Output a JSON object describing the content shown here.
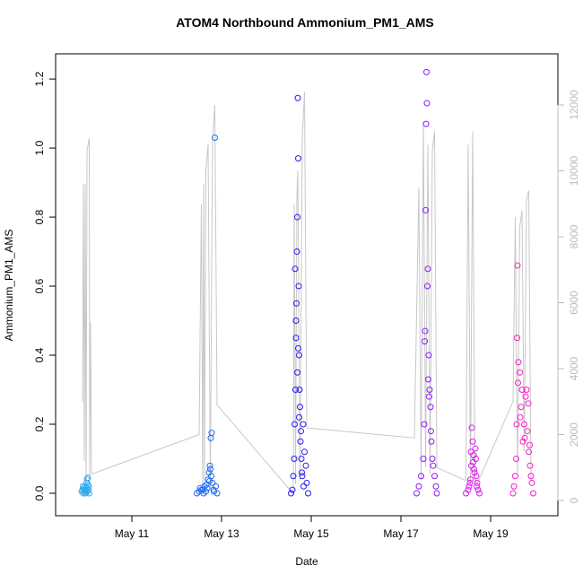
{
  "chart_data": {
    "type": "scatter",
    "title": "ATOM4 Northbound Ammonium_PM1_AMS",
    "x_label": "Date",
    "y_label": "Ammonium_PM1_AMS",
    "xlim": [
      9.3,
      20.5
    ],
    "xticks": [
      {
        "value": 11,
        "label": "May 11"
      },
      {
        "value": 13,
        "label": "May 13"
      },
      {
        "value": 15,
        "label": "May 15"
      },
      {
        "value": 17,
        "label": "May 17"
      },
      {
        "value": 19,
        "label": "May 19"
      }
    ],
    "ylim": [
      -0.065,
      1.273
    ],
    "yticks": [
      {
        "value": 0,
        "label": "0.0"
      },
      0.2,
      0.4,
      0.6,
      0.8,
      {
        "value": 1,
        "label": "1.0"
      },
      1.2
    ],
    "y2lim": [
      -463,
      13551
    ],
    "y2ticks": [
      0,
      2000,
      4000,
      6000,
      8000,
      10000,
      12000
    ],
    "y2_color": "#bbbbbb",
    "series": [
      {
        "color": "#2ea8f0",
        "x": [
          9.88,
          9.9,
          9.92,
          9.93,
          9.95,
          9.96,
          9.97,
          9.98,
          9.99,
          10.0,
          10.01,
          10.02,
          10.03,
          10.04,
          10.05,
          9.91,
          9.94,
          9.97,
          10.0,
          10.02
        ],
        "values": [
          0.005,
          0.01,
          0.0,
          0.015,
          0.005,
          0.02,
          0.0,
          0.01,
          0.03,
          0.04,
          0.005,
          0.045,
          0.01,
          0.02,
          0.0,
          0.02,
          0.01,
          0.005,
          0.015,
          0.025
        ]
      },
      {
        "color": "#1a6cf5",
        "x": [
          12.45,
          12.5,
          12.55,
          12.6,
          12.62,
          12.65,
          12.68,
          12.7,
          12.72,
          12.74,
          12.75,
          12.76,
          12.78,
          12.8,
          12.82,
          12.85,
          12.87,
          12.9,
          12.58,
          12.66,
          12.73,
          12.77,
          12.83,
          12.52
        ],
        "values": [
          0.0,
          0.005,
          0.01,
          0.0,
          0.02,
          0.005,
          0.015,
          0.04,
          0.06,
          0.08,
          0.07,
          0.16,
          0.175,
          0.03,
          0.01,
          1.03,
          0.02,
          0.0,
          0.01,
          0.025,
          0.035,
          0.05,
          0.005,
          0.015
        ]
      },
      {
        "color": "#2a1af0",
        "x": [
          14.55,
          14.58,
          14.6,
          14.62,
          14.63,
          14.65,
          14.66,
          14.67,
          14.68,
          14.69,
          14.7,
          14.71,
          14.72,
          14.73,
          14.74,
          14.75,
          14.76,
          14.78,
          14.8,
          14.82,
          14.85,
          14.88,
          14.9,
          14.93,
          14.64,
          14.66,
          14.69,
          14.71,
          14.73,
          14.77,
          14.79,
          14.83
        ],
        "values": [
          0.0,
          0.01,
          0.05,
          0.1,
          0.2,
          0.3,
          0.45,
          0.55,
          0.7,
          0.8,
          1.145,
          0.97,
          0.6,
          0.4,
          0.3,
          0.25,
          0.15,
          0.1,
          0.05,
          0.2,
          0.12,
          0.08,
          0.03,
          0.0,
          0.65,
          0.5,
          0.35,
          0.42,
          0.22,
          0.18,
          0.06,
          0.02
        ]
      },
      {
        "color": "#8a1aff",
        "x": [
          17.35,
          17.4,
          17.45,
          17.5,
          17.52,
          17.54,
          17.55,
          17.56,
          17.57,
          17.58,
          17.6,
          17.62,
          17.64,
          17.66,
          17.68,
          17.7,
          17.72,
          17.75,
          17.78,
          17.8,
          17.53,
          17.59,
          17.61,
          17.63,
          17.67
        ],
        "values": [
          0.0,
          0.02,
          0.05,
          0.1,
          0.2,
          0.47,
          0.82,
          1.07,
          1.22,
          1.13,
          0.65,
          0.4,
          0.3,
          0.25,
          0.15,
          0.1,
          0.08,
          0.05,
          0.02,
          0.0,
          0.44,
          0.6,
          0.33,
          0.28,
          0.18
        ]
      },
      {
        "color": "#e01aee",
        "x": [
          18.45,
          18.5,
          18.52,
          18.55,
          18.57,
          18.58,
          18.6,
          18.62,
          18.64,
          18.66,
          18.68,
          18.7,
          18.72,
          18.75,
          18.56,
          18.61,
          18.63,
          18.67,
          18.54,
          18.69
        ],
        "values": [
          0.0,
          0.01,
          0.02,
          0.04,
          0.08,
          0.19,
          0.15,
          0.11,
          0.06,
          0.13,
          0.05,
          0.03,
          0.01,
          0.0,
          0.12,
          0.09,
          0.07,
          0.1,
          0.03,
          0.02
        ]
      },
      {
        "color": "#ff1ac8",
        "x": [
          19.5,
          19.52,
          19.55,
          19.57,
          19.58,
          19.6,
          19.62,
          19.65,
          19.68,
          19.7,
          19.72,
          19.75,
          19.78,
          19.8,
          19.82,
          19.85,
          19.88,
          19.9,
          19.92,
          19.95,
          19.59,
          19.61,
          19.66,
          19.76,
          19.84,
          19.87
        ],
        "values": [
          0.0,
          0.02,
          0.05,
          0.1,
          0.2,
          0.66,
          0.38,
          0.35,
          0.25,
          0.3,
          0.15,
          0.2,
          0.28,
          0.3,
          0.18,
          0.12,
          0.08,
          0.05,
          0.03,
          0.0,
          0.45,
          0.32,
          0.22,
          0.16,
          0.26,
          0.14
        ]
      },
      {
        "type": "line",
        "axis": "y2",
        "color": "#c8c8c8",
        "x": [
          9.9,
          9.92,
          9.94,
          9.96,
          9.98,
          10.0,
          10.05,
          10.06,
          10.08,
          10.1,
          12.5,
          12.55,
          12.58,
          12.6,
          12.62,
          12.65,
          12.7,
          12.75,
          12.8,
          12.85,
          12.9,
          14.6,
          14.62,
          14.65,
          14.68,
          14.7,
          14.75,
          14.8,
          14.85,
          14.9,
          17.3,
          17.4,
          17.45,
          17.5,
          17.55,
          17.6,
          17.65,
          17.7,
          17.75,
          17.8,
          18.45,
          18.5,
          18.55,
          18.6,
          18.65,
          18.7,
          19.5,
          19.55,
          19.6,
          19.65,
          19.7,
          19.75,
          19.8,
          19.85,
          19.9
        ],
        "values": [
          3000,
          9600,
          1200,
          9600,
          400,
          10600,
          11000,
          700,
          5400,
          800,
          2000,
          9000,
          200,
          9600,
          600,
          10000,
          10800,
          400,
          11000,
          12000,
          2900,
          200,
          9000,
          500,
          9200,
          10000,
          600,
          11000,
          12400,
          2200,
          1900,
          9500,
          600,
          11500,
          1000,
          10800,
          800,
          10600,
          11200,
          1000,
          600,
          10800,
          500,
          11200,
          600,
          500,
          3000,
          8600,
          800,
          8300,
          8800,
          1500,
          9100,
          9400,
          600
        ]
      }
    ]
  }
}
